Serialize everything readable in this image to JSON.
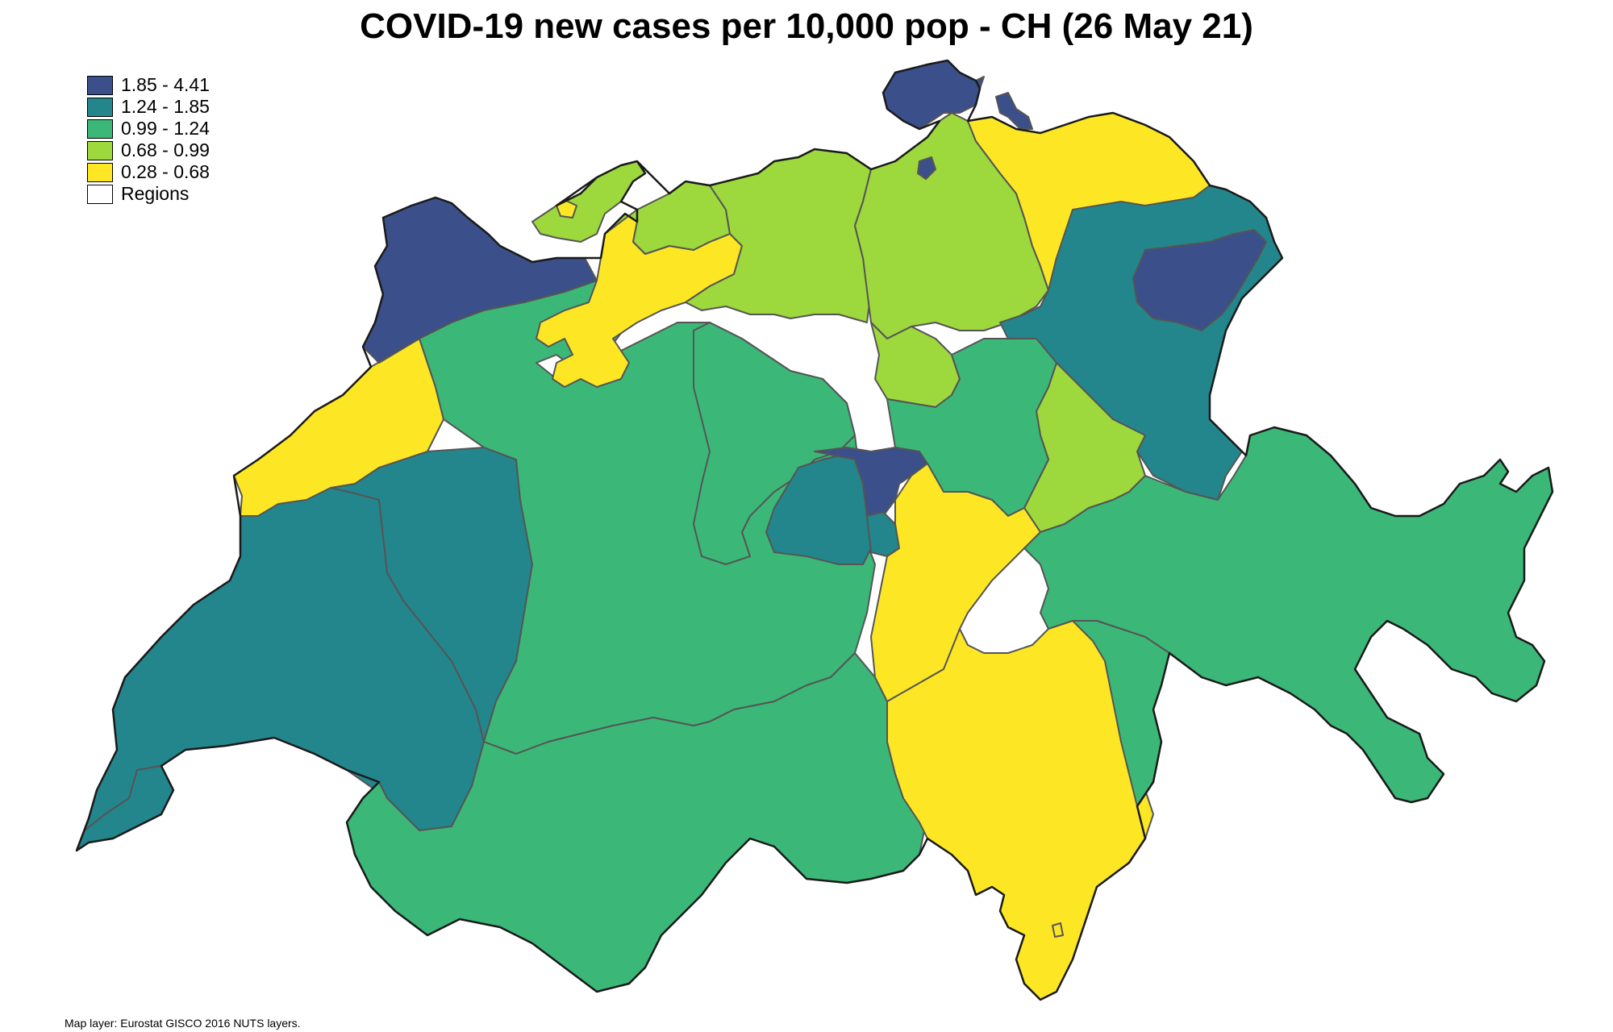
{
  "map": {
    "title": "COVID-19 new cases per 10,000 pop - CH (26 May 21)",
    "source": "Map layer: Eurostat GISCO 2016 NUTS layers.",
    "legend": [
      {
        "label": "1.85 - 4.41",
        "color": "#3b4f8a"
      },
      {
        "label": "1.24 - 1.85",
        "color": "#23868c"
      },
      {
        "label": "0.99 - 1.24",
        "color": "#3bb877"
      },
      {
        "label": "0.68 - 0.99",
        "color": "#9dd83c"
      },
      {
        "label": "0.28 - 0.68",
        "color": "#fde725"
      },
      {
        "label": "Regions",
        "color": "#ffffff"
      }
    ]
  }
}
